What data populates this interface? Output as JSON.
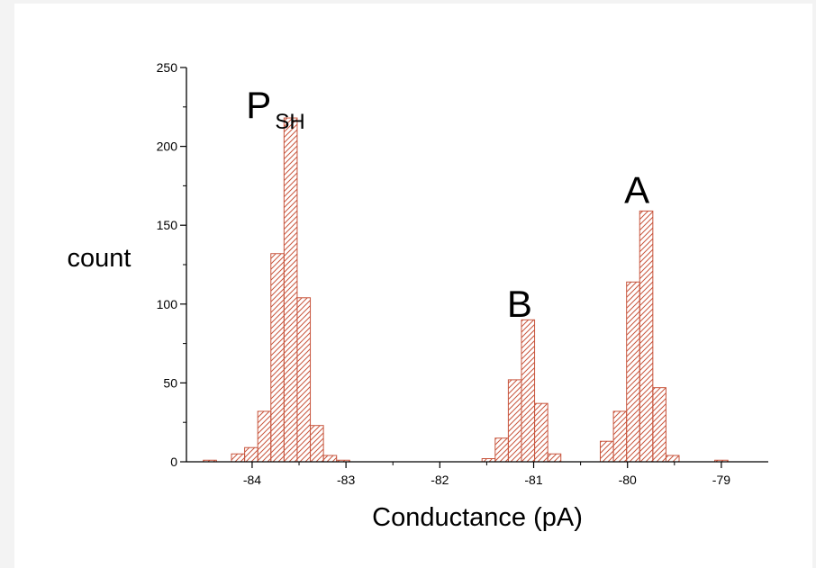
{
  "chart_data": {
    "type": "bar",
    "title": "",
    "xlabel": "Conductance (pA)",
    "ylabel": "count",
    "xlim": [
      -84.7,
      -78.5
    ],
    "ylim": [
      0,
      250
    ],
    "x_ticks": [
      -84,
      -83,
      -82,
      -81,
      -80,
      -79
    ],
    "y_ticks": [
      0,
      50,
      100,
      150,
      200,
      250
    ],
    "bin_width": 0.14,
    "bar_color": "#c8553d",
    "fill_pattern": "diagonal-hatch",
    "grid": false,
    "bins": [
      {
        "x": -84.45,
        "count": 1
      },
      {
        "x": -84.15,
        "count": 5
      },
      {
        "x": -84.01,
        "count": 9
      },
      {
        "x": -83.87,
        "count": 32
      },
      {
        "x": -83.73,
        "count": 132
      },
      {
        "x": -83.59,
        "count": 218
      },
      {
        "x": -83.45,
        "count": 104
      },
      {
        "x": -83.31,
        "count": 23
      },
      {
        "x": -83.17,
        "count": 4
      },
      {
        "x": -83.03,
        "count": 1
      },
      {
        "x": -81.48,
        "count": 2
      },
      {
        "x": -81.34,
        "count": 15
      },
      {
        "x": -81.2,
        "count": 52
      },
      {
        "x": -81.06,
        "count": 90
      },
      {
        "x": -80.92,
        "count": 37
      },
      {
        "x": -80.78,
        "count": 5
      },
      {
        "x": -80.22,
        "count": 13
      },
      {
        "x": -80.08,
        "count": 32
      },
      {
        "x": -79.94,
        "count": 114
      },
      {
        "x": -79.8,
        "count": 159
      },
      {
        "x": -79.66,
        "count": 47
      },
      {
        "x": -79.52,
        "count": 4
      },
      {
        "x": -79.0,
        "count": 1
      }
    ],
    "annotations": [
      {
        "id": "psh",
        "text": "P",
        "subscript": "SH",
        "x": -83.75,
        "y": 226
      },
      {
        "id": "b",
        "text": "B",
        "x": -81.15,
        "y": 100
      },
      {
        "id": "a",
        "text": "A",
        "x": -79.9,
        "y": 172
      }
    ]
  }
}
